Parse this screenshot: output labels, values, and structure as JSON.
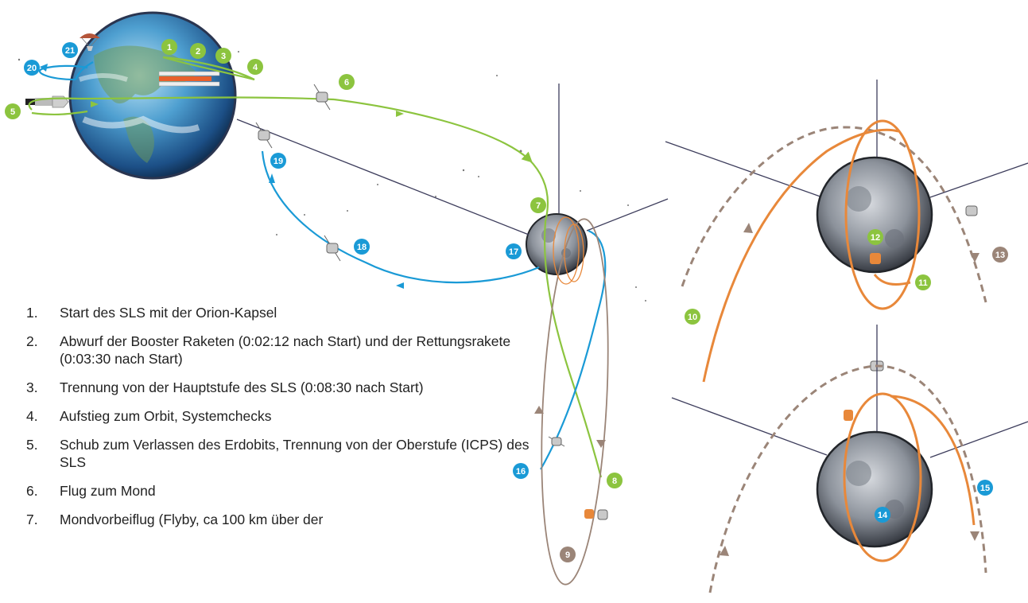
{
  "colors": {
    "green": "#8cc43f",
    "blue": "#1a9ad6",
    "brown": "#9b8578",
    "orange": "#e8883a",
    "axis": "#3d3d5c"
  },
  "markers": [
    {
      "n": "1",
      "color": "green"
    },
    {
      "n": "2",
      "color": "green"
    },
    {
      "n": "3",
      "color": "green"
    },
    {
      "n": "4",
      "color": "green"
    },
    {
      "n": "5",
      "color": "green"
    },
    {
      "n": "6",
      "color": "green"
    },
    {
      "n": "7",
      "color": "green"
    },
    {
      "n": "8",
      "color": "green"
    },
    {
      "n": "9",
      "color": "brown"
    },
    {
      "n": "10",
      "color": "green"
    },
    {
      "n": "11",
      "color": "green"
    },
    {
      "n": "12",
      "color": "green"
    },
    {
      "n": "13",
      "color": "brown"
    },
    {
      "n": "14",
      "color": "blue"
    },
    {
      "n": "15",
      "color": "blue"
    },
    {
      "n": "16",
      "color": "blue"
    },
    {
      "n": "17",
      "color": "blue"
    },
    {
      "n": "18",
      "color": "blue"
    },
    {
      "n": "19",
      "color": "blue"
    },
    {
      "n": "20",
      "color": "blue"
    },
    {
      "n": "21",
      "color": "blue"
    }
  ],
  "steps": [
    {
      "num": "1.",
      "text": "Start des SLS mit der Orion-Kapsel"
    },
    {
      "num": "2.",
      "text": "Abwurf der Booster Raketen (0:02:12 nach Start) und der Rettungsrakete (0:03:30 nach Start)"
    },
    {
      "num": "3.",
      "text": "Trennung von der Hauptstufe des SLS (0:08:30 nach Start)"
    },
    {
      "num": "4.",
      "text": "Aufstieg zum Orbit, Systemchecks"
    },
    {
      "num": "5.",
      "text": "Schub zum Verlassen des Erdobits, Trennung von der Oberstufe (ICPS) des SLS"
    },
    {
      "num": "6.",
      "text": "Flug zum Mond"
    },
    {
      "num": "7.",
      "text": "Mondvorbeiflug (Flyby, ca 100 km über der"
    }
  ]
}
